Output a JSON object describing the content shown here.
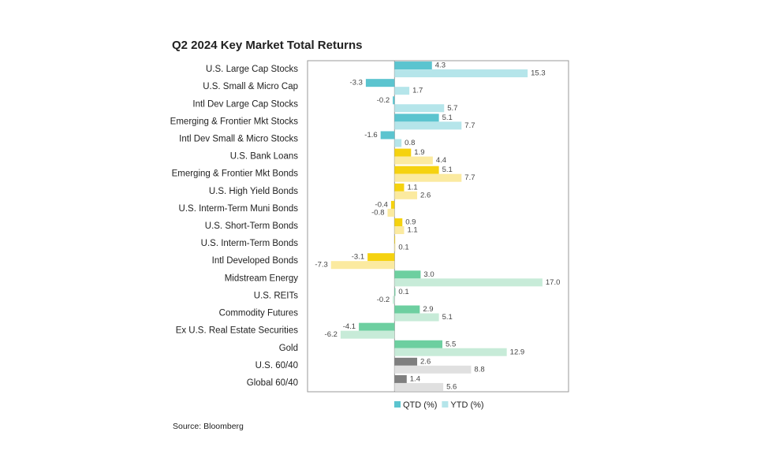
{
  "chart_data": {
    "type": "bar",
    "orientation": "horizontal",
    "title": "Q2 2024 Key Market Total Returns",
    "source": "Source: Bloomberg",
    "categories": [
      "U.S. Large Cap Stocks",
      "U.S. Small & Micro Cap",
      "Intl Dev Large Cap Stocks",
      "Emerging & Frontier Mkt Stocks",
      "Intl Dev Small & Micro Stocks",
      "U.S. Bank Loans",
      "Emerging & Frontier Mkt Bonds",
      "U.S. High Yield Bonds",
      "U.S. Interm-Term Muni Bonds",
      "U.S. Short-Term Bonds",
      "U.S. Interm-Term Bonds",
      "Intl Developed Bonds",
      "Midstream Energy",
      "U.S. REITs",
      "Commodity Futures",
      "Ex U.S. Real Estate Securities",
      "Gold",
      "U.S. 60/40",
      "Global 60/40"
    ],
    "series": [
      {
        "name": "QTD (%)",
        "color": "#5bc4cf",
        "values": [
          4.3,
          -3.3,
          -0.2,
          5.1,
          -1.6,
          1.9,
          5.1,
          1.1,
          -0.4,
          0.9,
          0,
          -3.1,
          3.0,
          0.1,
          2.9,
          -4.1,
          5.5,
          2.6,
          1.4
        ],
        "value_labels": [
          "4.3",
          "-3.3",
          "-0.2",
          "5.1",
          "-1.6",
          "1.9",
          "5.1",
          "1.1",
          "-0.4",
          "0.9",
          null,
          "-3.1",
          "3.0",
          "0.1",
          "2.9",
          "-4.1",
          "5.5",
          "2.6",
          "1.4"
        ],
        "colors": [
          "#5bc4cf",
          "#5bc4cf",
          "#5bc4cf",
          "#5bc4cf",
          "#5bc4cf",
          "#f5d20f",
          "#f5d20f",
          "#f5d20f",
          "#f5d20f",
          "#f5d20f",
          "#f5d20f",
          "#f5d20f",
          "#6dcfa0",
          "#6dcfa0",
          "#6dcfa0",
          "#6dcfa0",
          "#6dcfa0",
          "#7f7f7f",
          "#7f7f7f"
        ]
      },
      {
        "name": "YTD (%)",
        "color": "#b5e5ea",
        "values": [
          15.3,
          1.7,
          5.7,
          7.7,
          0.8,
          4.4,
          7.7,
          2.6,
          -0.8,
          1.1,
          0.1,
          -7.3,
          17.0,
          -0.2,
          5.1,
          -6.2,
          12.9,
          8.8,
          5.6
        ],
        "value_labels": [
          "15.3",
          "1.7",
          "5.7",
          "7.7",
          "0.8",
          "4.4",
          "7.7",
          "2.6",
          "-0.8",
          "1.1",
          "0.1",
          "-7.3",
          "17.0",
          "-0.2",
          "5.1",
          "-6.2",
          "12.9",
          "8.8",
          "5.6"
        ],
        "colors": [
          "#b5e5ea",
          "#b5e5ea",
          "#b5e5ea",
          "#b5e5ea",
          "#b5e5ea",
          "#fbeaa0",
          "#fbeaa0",
          "#fbeaa0",
          "#fbeaa0",
          "#fbeaa0",
          "#fbeaa0",
          "#fbeaa0",
          "#c7ebd8",
          "#c7ebd8",
          "#c7ebd8",
          "#c7ebd8",
          "#c7ebd8",
          "#e0e0e0",
          "#e0e0e0"
        ]
      }
    ],
    "xlim": [
      -10,
      20
    ]
  }
}
